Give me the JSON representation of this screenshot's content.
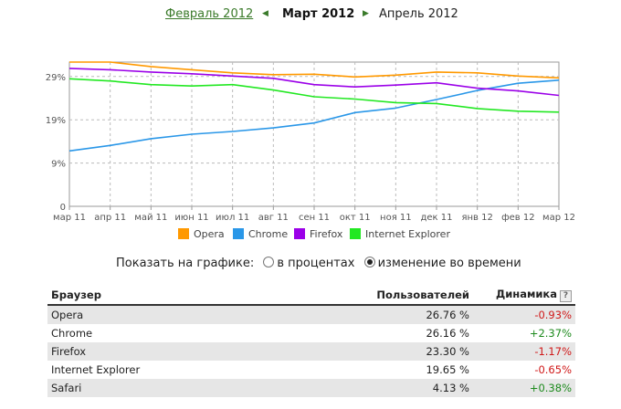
{
  "nav": {
    "prev_month": "Февраль 2012",
    "current_month": "Март 2012",
    "next_month": "Апрель 2012"
  },
  "display_mode": {
    "label": "Показать на графике:",
    "options": [
      "в процентах",
      "изменение во времени"
    ],
    "selected_index": 1
  },
  "table": {
    "headers": {
      "browser": "Браузер",
      "users": "Пользователей",
      "trend": "Динамика",
      "help": "?"
    },
    "rows": [
      {
        "browser": "Opera",
        "users": "26.76 %",
        "trend": "-0.93%"
      },
      {
        "browser": "Chrome",
        "users": "26.16 %",
        "trend": "+2.37%"
      },
      {
        "browser": "Firefox",
        "users": "23.30 %",
        "trend": "-1.17%"
      },
      {
        "browser": "Internet Explorer",
        "users": "19.65 %",
        "trend": "-0.65%"
      },
      {
        "browser": "Safari",
        "users": "4.13 %",
        "trend": "+0.38%"
      }
    ]
  },
  "chart_data": {
    "type": "line",
    "x": [
      "мар 11",
      "апр 11",
      "май 11",
      "июн 11",
      "июл 11",
      "авг 11",
      "сен 11",
      "окт 11",
      "ноя 11",
      "дек 11",
      "янв 12",
      "фев 12",
      "мар 12"
    ],
    "y_ticks": [
      "0",
      "9%",
      "19%",
      "29%"
    ],
    "y_tick_values": [
      0,
      9.6,
      19.2,
      28.8
    ],
    "ylim": [
      0,
      32
    ],
    "grid": true,
    "legend_position": "bottom",
    "series": [
      {
        "name": "Opera",
        "color": "#ff9900",
        "values": [
          32.0,
          32.0,
          31.0,
          30.3,
          29.6,
          29.2,
          29.3,
          28.7,
          29.1,
          29.8,
          29.6,
          28.9,
          28.5
        ]
      },
      {
        "name": "Chrome",
        "color": "#2a97e8",
        "values": [
          12.3,
          13.5,
          15.0,
          16.0,
          16.6,
          17.4,
          18.5,
          20.8,
          21.8,
          23.7,
          25.7,
          27.3,
          28.0
        ]
      },
      {
        "name": "Firefox",
        "color": "#9b00e8",
        "values": [
          30.6,
          30.3,
          29.8,
          29.4,
          28.9,
          28.4,
          27.0,
          26.5,
          26.9,
          27.4,
          26.2,
          25.6,
          24.6
        ]
      },
      {
        "name": "Internet Explorer",
        "color": "#22e822",
        "values": [
          28.3,
          27.8,
          27.0,
          26.7,
          27.0,
          25.8,
          24.3,
          23.8,
          23.0,
          22.8,
          21.7,
          21.1,
          20.9
        ]
      }
    ]
  }
}
